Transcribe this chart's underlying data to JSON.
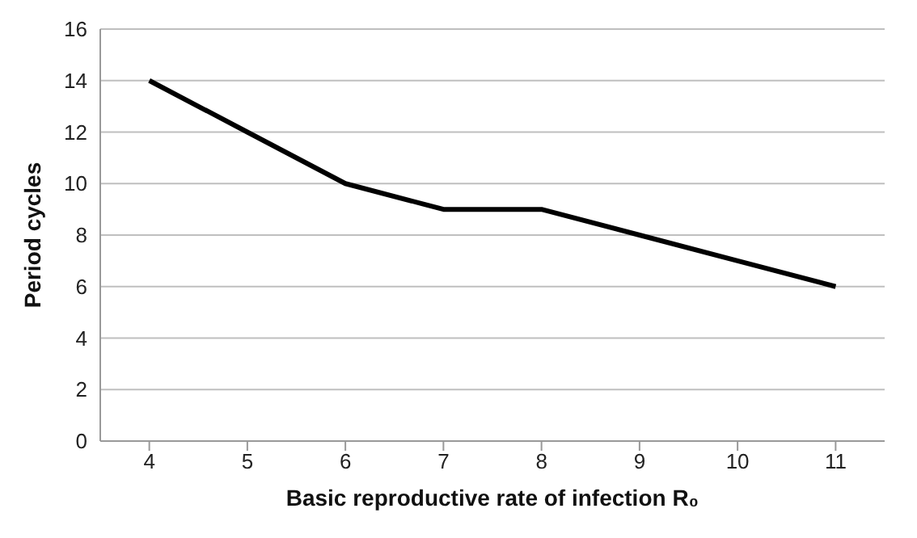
{
  "chart_data": {
    "type": "line",
    "xlabel": "Basic reproductive rate of infection R₀",
    "ylabel": "Period cycles",
    "categories": [
      "4",
      "5",
      "6",
      "7",
      "8",
      "9",
      "10",
      "11"
    ],
    "series": [
      {
        "color": "#000000",
        "values": [
          14,
          12,
          10,
          9,
          9,
          8,
          7,
          6
        ]
      }
    ],
    "ylim": [
      0,
      16
    ],
    "yticks": [
      0,
      2,
      4,
      6,
      8,
      10,
      12,
      14,
      16
    ],
    "grid": "y",
    "marker": "none",
    "line_style": "solid"
  }
}
